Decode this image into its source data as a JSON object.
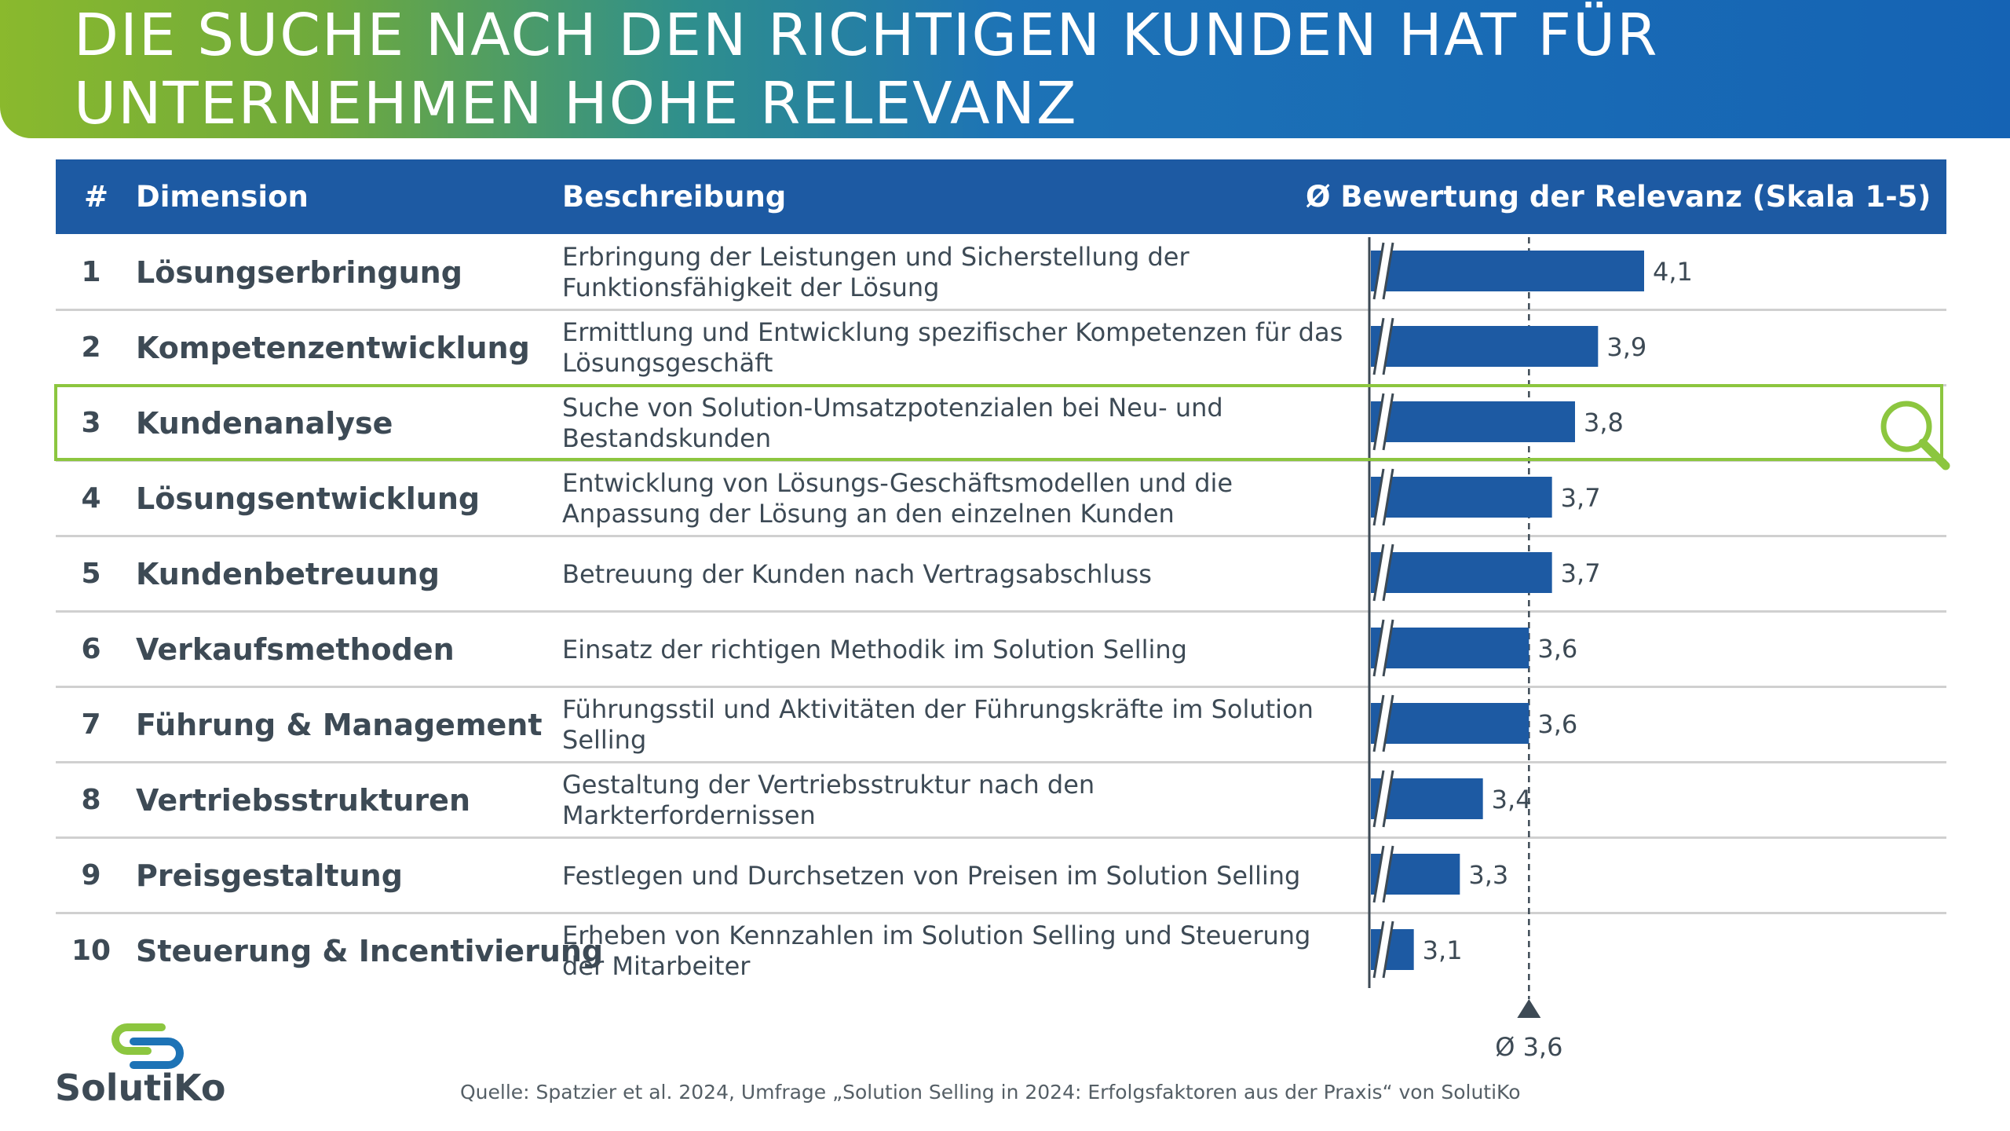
{
  "title": "DIE SUCHE NACH DEN RICHTIGEN KUNDEN HAT FÜR\nUNTERNEHMEN HOHE RELEVANZ",
  "header": {
    "num": "#",
    "dimension": "Dimension",
    "description": "Beschreibung",
    "rating": "Ø Bewertung der Relevanz (Skala 1-5)"
  },
  "rows": [
    {
      "num": "1",
      "dimension": "Lösungserbringung",
      "description": "Erbringung der Leistungen und Sicherstellung der\nFunktionsfähigkeit der Lösung",
      "value_label": "4,1"
    },
    {
      "num": "2",
      "dimension": "Kompetenzentwicklung",
      "description": "Ermittlung und Entwicklung spezifischer Kompetenzen für das\nLösungsgeschäft",
      "value_label": "3,9"
    },
    {
      "num": "3",
      "dimension": "Kundenanalyse",
      "description": "Suche von Solution-Umsatzpotenzialen bei Neu- und\nBestandskunden",
      "value_label": "3,8"
    },
    {
      "num": "4",
      "dimension": "Lösungsentwicklung",
      "description": "Entwicklung von Lösungs-Geschäftsmodellen und die\nAnpassung der Lösung an den einzelnen Kunden",
      "value_label": "3,7"
    },
    {
      "num": "5",
      "dimension": "Kundenbetreuung",
      "description": "Betreuung der Kunden nach Vertragsabschluss",
      "value_label": "3,7"
    },
    {
      "num": "6",
      "dimension": "Verkaufsmethoden",
      "description": "Einsatz der richtigen Methodik im Solution Selling",
      "value_label": "3,6"
    },
    {
      "num": "7",
      "dimension": "Führung & Management",
      "description": "Führungsstil und Aktivitäten der Führungskräfte im Solution\nSelling",
      "value_label": "3,6"
    },
    {
      "num": "8",
      "dimension": "Vertriebsstrukturen",
      "description": "Gestaltung der Vertriebsstruktur nach den\nMarkterfordernissen",
      "value_label": "3,4"
    },
    {
      "num": "9",
      "dimension": "Preisgestaltung",
      "description": "Festlegen und Durchsetzen von Preisen im Solution Selling",
      "value_label": "3,3"
    },
    {
      "num": "10",
      "dimension": "Steuerung & Incentivierung",
      "description": "Erheben von Kennzahlen im Solution Selling und Steuerung\nder Mitarbeiter",
      "value_label": "3,1"
    }
  ],
  "highlighted_row": 3,
  "chart_data": {
    "type": "bar",
    "orientation": "horizontal",
    "categories": [
      "Lösungserbringung",
      "Kompetenzentwicklung",
      "Kundenanalyse",
      "Lösungsentwicklung",
      "Kundenbetreuung",
      "Verkaufsmethoden",
      "Führung & Management",
      "Vertriebsstrukturen",
      "Preisgestaltung",
      "Steuerung & Incentivierung"
    ],
    "values": [
      4.1,
      3.9,
      3.8,
      3.7,
      3.7,
      3.6,
      3.6,
      3.4,
      3.3,
      3.1
    ],
    "value_labels": [
      "4,1",
      "3,9",
      "3,8",
      "3,7",
      "3,7",
      "3,6",
      "3,6",
      "3,4",
      "3,3",
      "3,1"
    ],
    "axis_break": true,
    "xlim": [
      2.9,
      4.1
    ],
    "average": 3.6,
    "average_label": "Ø 3,6",
    "bar_color": "#1d5aa3"
  },
  "colors": {
    "header_bg": "#1d5aa3",
    "highlight": "#8cc63f",
    "text": "#3d4a55"
  },
  "logo": {
    "text": "SolutiKo",
    "icon": "solutiko-s-logo-icon"
  },
  "source": "Quelle: Spatzier et al. 2024, Umfrage „Solution Selling in 2024: Erfolgsfaktoren aus der Praxis“ von SolutiKo"
}
